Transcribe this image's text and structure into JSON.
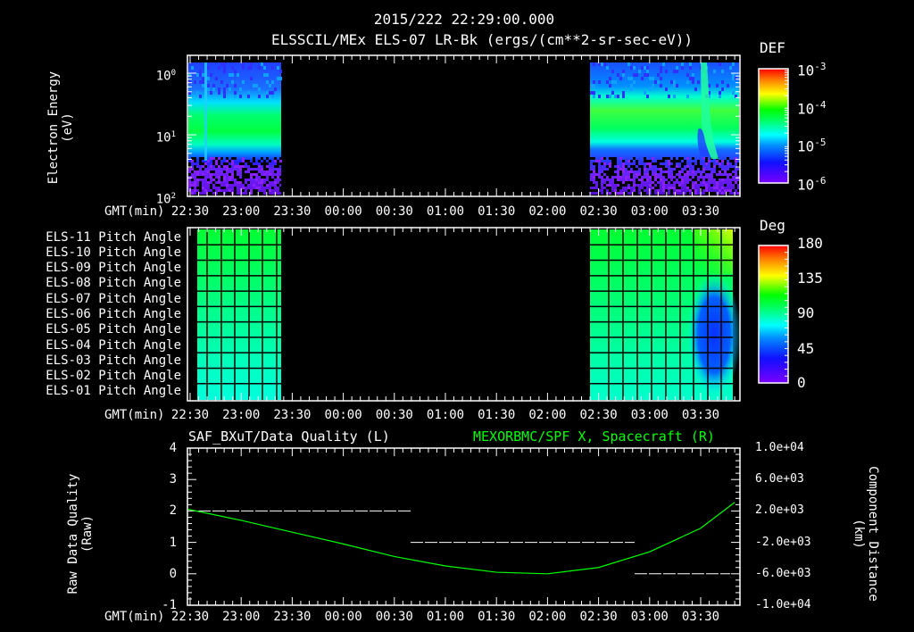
{
  "header": {
    "timestamp": "2015/222 22:29:00.000",
    "subtitle": "ELSSCIL/MEx ELS-07 LR-Bk  (ergs/(cm**2-sr-sec-eV))"
  },
  "x_axis": {
    "label": "GMT(min)",
    "ticks": [
      "22:30",
      "23:00",
      "23:30",
      "00:00",
      "00:30",
      "01:00",
      "01:30",
      "02:00",
      "02:30",
      "03:00",
      "03:30"
    ]
  },
  "panel1": {
    "ylabel_line1": "Electron Energy",
    "ylabel_line2": "(eV)",
    "yticks": [
      "10",
      "10",
      "10"
    ],
    "yexps": [
      "2",
      "1",
      "0"
    ],
    "colorbar": {
      "title": "DEF",
      "labels": [
        "10",
        "10",
        "10",
        "10"
      ],
      "exps": [
        "-3",
        "-4",
        "-5",
        "-6"
      ]
    }
  },
  "panel2": {
    "rows": [
      "ELS-11 Pitch Angle",
      "ELS-10 Pitch Angle",
      "ELS-09 Pitch Angle",
      "ELS-08 Pitch Angle",
      "ELS-07 Pitch Angle",
      "ELS-06 Pitch Angle",
      "ELS-05 Pitch Angle",
      "ELS-04 Pitch Angle",
      "ELS-03 Pitch Angle",
      "ELS-02 Pitch Angle",
      "ELS-01 Pitch Angle"
    ],
    "colorbar": {
      "title": "Deg",
      "labels": [
        "180",
        "135",
        "90",
        "45",
        "0"
      ]
    }
  },
  "panel3": {
    "left_title": "SAF_BXuT/Data Quality (L)",
    "right_title": "MEXORBMC/SPF X, Spacecraft (R)",
    "ylabel_left_line1": "Raw Data Quality",
    "ylabel_left_line2": "(Raw)",
    "ylabel_right_line1": "Component Distance",
    "ylabel_right_line2": "(km)",
    "yticks_left": [
      "4",
      "3",
      "2",
      "1",
      "0",
      "-1"
    ],
    "yticks_right": [
      "1.0e+04",
      "6.0e+03",
      "2.0e+03",
      "-2.0e+03",
      "-6.0e+03",
      "-1.0e+04"
    ],
    "right_color": "#00ff00"
  },
  "chart_data": [
    {
      "type": "heatmap",
      "title": "ELSSCIL/MEx ELS-07 LR-Bk (ergs/(cm**2-sr-sec-eV))",
      "xlabel": "GMT(min)",
      "ylabel": "Electron Energy (eV)",
      "yscale": "log",
      "ylim": [
        1,
        150
      ],
      "colorbar": {
        "label": "DEF",
        "scale": "log",
        "range": [
          1e-06,
          0.001
        ]
      },
      "data_coverage": [
        [
          "22:25",
          "23:23"
        ],
        [
          "02:23",
          "03:50"
        ]
      ],
      "notes": "Peak flux ~1e-4 around 10-30 eV in both intervals; energy-dispersed feature near 03:20-03:30"
    },
    {
      "type": "heatmap",
      "title": "ELS Pitch Angle",
      "xlabel": "GMT(min)",
      "rows": [
        "ELS-11",
        "ELS-10",
        "ELS-09",
        "ELS-08",
        "ELS-07",
        "ELS-06",
        "ELS-05",
        "ELS-04",
        "ELS-03",
        "ELS-02",
        "ELS-01"
      ],
      "colorbar": {
        "label": "Deg",
        "range": [
          0,
          180
        ]
      },
      "data_coverage": [
        [
          "22:25",
          "23:23"
        ],
        [
          "02:23",
          "03:50"
        ]
      ],
      "notes": "Values ~100 deg (ELS-11) decreasing to ~65 deg (ELS-01); minima ~30 deg near 03:30 for ELS-03..06"
    },
    {
      "type": "line",
      "series": [
        {
          "name": "SAF_BXuT/Data Quality (L)",
          "axis": "left",
          "style": "step",
          "x": [
            "22:30",
            "00:40",
            "00:40",
            "02:52",
            "02:52",
            "03:50"
          ],
          "values": [
            2,
            2,
            1,
            1,
            0,
            0
          ]
        },
        {
          "name": "MEXORBMC/SPF X, Spacecraft (R)",
          "axis": "right",
          "x": [
            "22:30",
            "23:00",
            "23:30",
            "00:00",
            "00:30",
            "01:00",
            "01:30",
            "02:00",
            "02:30",
            "03:00",
            "03:30",
            "03:50"
          ],
          "values": [
            2200,
            800,
            -700,
            -2200,
            -3800,
            -5000,
            -5800,
            -6000,
            -5200,
            -3200,
            -200,
            3100
          ]
        }
      ],
      "ylim_left": [
        -1,
        4
      ],
      "ylim_right": [
        -10000,
        10000
      ],
      "xlabel": "GMT(min)",
      "ylabel_left": "Raw Data Quality (Raw)",
      "ylabel_right": "Component Distance (km)"
    }
  ]
}
